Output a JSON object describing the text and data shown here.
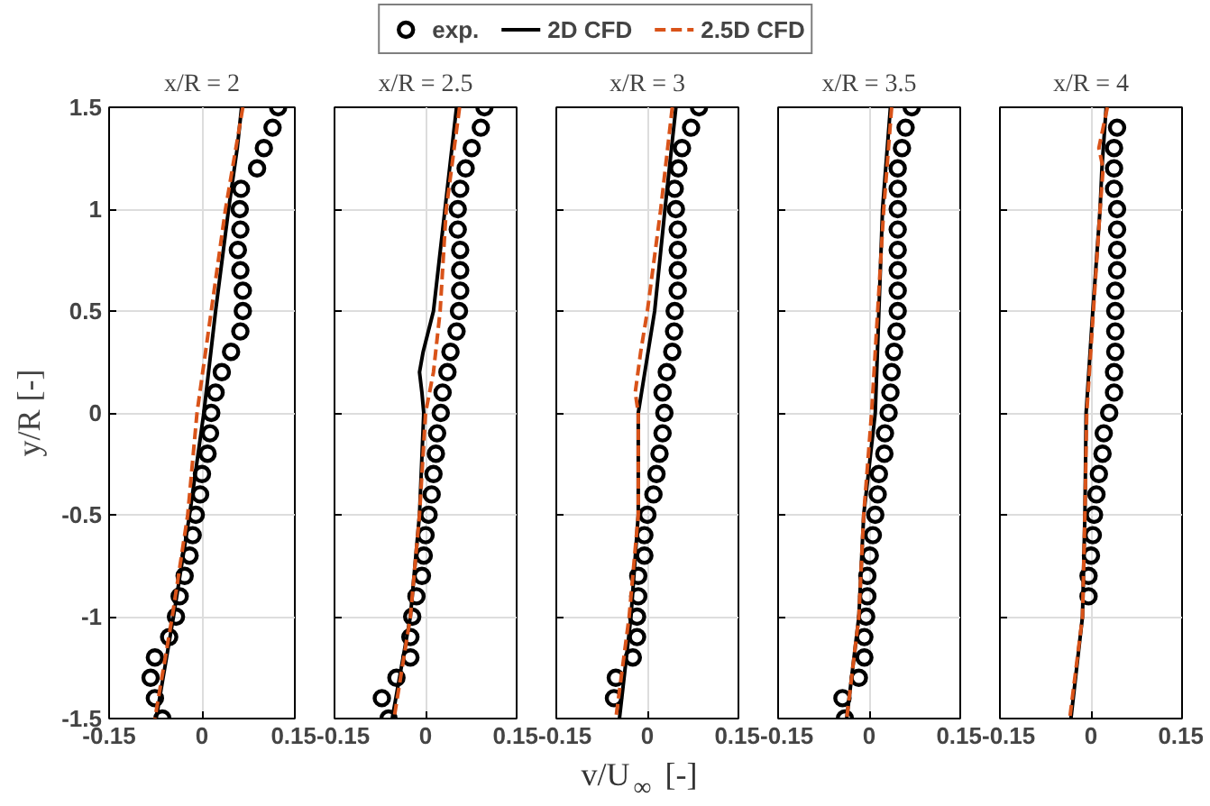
{
  "chart_data": [
    {
      "type": "scatter",
      "title": "x/R = 2",
      "ylabel": "y/R [-]",
      "xlim": [
        -0.15,
        0.15
      ],
      "xticks": [
        -0.15,
        0,
        0.15
      ],
      "ylim": [
        -1.5,
        1.5
      ],
      "yticks": [
        -1.5,
        -1,
        -0.5,
        0,
        0.5,
        1,
        1.5
      ],
      "grid": true,
      "legend": "top",
      "series": [
        {
          "name": "exp.",
          "color": "#000000",
          "marker": "circle",
          "x": [
            0.123,
            0.114,
            0.1,
            0.089,
            0.063,
            0.061,
            0.062,
            0.058,
            0.062,
            0.066,
            0.066,
            0.062,
            0.047,
            0.032,
            0.022,
            0.015,
            0.013,
            0.009,
            0,
            -0.003,
            -0.01,
            -0.015,
            -0.02,
            -0.028,
            -0.036,
            -0.042,
            -0.053,
            -0.076,
            -0.083,
            -0.076,
            -0.064
          ],
          "values": [
            1.5,
            1.4,
            1.3,
            1.2,
            1.1,
            1.0,
            0.9,
            0.8,
            0.7,
            0.6,
            0.5,
            0.4,
            0.3,
            0.2,
            0.1,
            0,
            -0.1,
            -0.2,
            -0.3,
            -0.4,
            -0.5,
            -0.6,
            -0.7,
            -0.8,
            -0.9,
            -1.0,
            -1.1,
            -1.2,
            -1.3,
            -1.4,
            -1.5
          ]
        },
        {
          "name": "2D CFD",
          "type": "line",
          "color": "#000000",
          "line_style": "solid",
          "x": [
            0.064,
            0.057,
            0.043,
            0.022,
            0.003,
            -0.02,
            -0.046,
            -0.074
          ],
          "values": [
            1.5,
            1.3,
            1.0,
            0.5,
            0,
            -0.5,
            -1.0,
            -1.5
          ]
        },
        {
          "name": "2.5D CFD",
          "type": "line",
          "color": "#d95319",
          "line_style": "dashed",
          "x": [
            0.066,
            0.038,
            0.015,
            -0.008,
            -0.023,
            -0.048,
            -0.076
          ],
          "values": [
            1.5,
            1.0,
            0.5,
            0,
            -0.5,
            -1.0,
            -1.5
          ]
        }
      ]
    },
    {
      "type": "scatter",
      "title": "x/R = 2.5",
      "xlim": [
        -0.15,
        0.15
      ],
      "xticks": [
        -0.15,
        0,
        0.15
      ],
      "ylim": [
        -1.5,
        1.5
      ],
      "yticks": [
        -1.5,
        -1,
        -0.5,
        0,
        0.5,
        1,
        1.5
      ],
      "tick_labels": "x",
      "grid": true,
      "series": [
        {
          "color": "#000000",
          "marker": "circle",
          "x": [
            0.097,
            0.091,
            0.076,
            0.066,
            0.057,
            0.053,
            0.053,
            0.057,
            0.057,
            0.057,
            0.055,
            0.051,
            0.041,
            0.036,
            0.028,
            0.025,
            0.019,
            0.017,
            0.013,
            0.01,
            0.005,
            0,
            -0.003,
            -0.006,
            -0.015,
            -0.022,
            -0.025,
            -0.025,
            -0.048,
            -0.072,
            -0.061
          ],
          "values": [
            1.5,
            1.4,
            1.3,
            1.2,
            1.1,
            1.0,
            0.9,
            0.8,
            0.7,
            0.6,
            0.5,
            0.4,
            0.3,
            0.2,
            0.1,
            0,
            -0.1,
            -0.2,
            -0.3,
            -0.4,
            -0.5,
            -0.6,
            -0.7,
            -0.8,
            -0.9,
            -1.0,
            -1.1,
            -1.2,
            -1.3,
            -1.4,
            -1.5
          ]
        },
        {
          "type": "line",
          "color": "#000000",
          "line_style": "solid",
          "x": [
            0.051,
            0.032,
            0.013,
            -0.004,
            -0.01,
            -0.006,
            -0.003,
            -0.01,
            -0.025,
            -0.055
          ],
          "values": [
            1.5,
            1.0,
            0.5,
            0.3,
            0.2,
            0.1,
            0,
            -0.5,
            -1.0,
            -1.5
          ]
        },
        {
          "type": "line",
          "color": "#d95319",
          "line_style": "dashed",
          "x": [
            0.056,
            0.034,
            0.024,
            0.013,
            0,
            -0.01,
            -0.025,
            -0.052
          ],
          "values": [
            1.5,
            1.0,
            0.5,
            0.2,
            0,
            -0.5,
            -1.0,
            -1.5
          ]
        }
      ]
    },
    {
      "type": "scatter",
      "title": "x/R = 3",
      "xlabel": "v/U$_{∞}$ [-]",
      "xlim": [
        -0.15,
        0.15
      ],
      "xticks": [
        -0.15,
        0,
        0.15
      ],
      "ylim": [
        -1.5,
        1.5
      ],
      "yticks": [
        -1.5,
        -1,
        -0.5,
        0,
        0.5,
        1,
        1.5
      ],
      "tick_labels": "x",
      "grid": true,
      "series": [
        {
          "color": "#000000",
          "marker": "circle",
          "x": [
            0.085,
            0.072,
            0.057,
            0.051,
            0.045,
            0.047,
            0.05,
            0.05,
            0.05,
            0.05,
            0.045,
            0.044,
            0.041,
            0.032,
            0.025,
            0.028,
            0.025,
            0.02,
            0.015,
            0.01,
            0.0,
            -0.005,
            -0.005,
            -0.015,
            -0.015,
            -0.017,
            -0.017,
            -0.024,
            -0.052,
            -0.055
          ],
          "values": [
            1.5,
            1.4,
            1.3,
            1.2,
            1.1,
            1.0,
            0.9,
            0.8,
            0.7,
            0.6,
            0.5,
            0.4,
            0.3,
            0.2,
            0.1,
            0,
            -0.1,
            -0.2,
            -0.3,
            -0.4,
            -0.5,
            -0.6,
            -0.7,
            -0.8,
            -0.9,
            -1.0,
            -1.1,
            -1.2,
            -1.3,
            -1.4
          ]
        },
        {
          "type": "line",
          "color": "#000000",
          "line_style": "solid",
          "x": [
            0.047,
            0.029,
            0.012,
            -0.015,
            -0.015,
            -0.027,
            -0.046
          ],
          "values": [
            1.5,
            1.0,
            0.5,
            0,
            -0.5,
            -1.0,
            -1.5
          ]
        },
        {
          "type": "line",
          "color": "#d95319",
          "line_style": "dashed",
          "x": [
            0.041,
            0.022,
            0,
            -0.011,
            -0.02,
            -0.015,
            -0.015,
            -0.03,
            -0.052
          ],
          "values": [
            1.5,
            1.0,
            0.5,
            0.3,
            0.1,
            0,
            -0.5,
            -1.0,
            -1.5
          ]
        }
      ]
    },
    {
      "type": "scatter",
      "title": "x/R = 3.5",
      "xlim": [
        -0.15,
        0.15
      ],
      "xticks": [
        -0.15,
        0,
        0.15
      ],
      "ylim": [
        -1.5,
        1.5
      ],
      "yticks": [
        -1.5,
        -1,
        -0.5,
        0,
        0.5,
        1,
        1.5
      ],
      "tick_labels": "x",
      "grid": true,
      "series": [
        {
          "color": "#000000",
          "marker": "circle",
          "x": [
            0.07,
            0.06,
            0.054,
            0.047,
            0.047,
            0.047,
            0.047,
            0.047,
            0.047,
            0.047,
            0.047,
            0.045,
            0.041,
            0.037,
            0.035,
            0.032,
            0.026,
            0.025,
            0.016,
            0.014,
            0.01,
            0.006,
            0.001,
            -0.003,
            -0.003,
            -0.005,
            -0.008,
            -0.008,
            -0.017,
            -0.044,
            -0.04
          ],
          "values": [
            1.5,
            1.4,
            1.3,
            1.2,
            1.1,
            1.0,
            0.9,
            0.8,
            0.7,
            0.6,
            0.5,
            0.4,
            0.3,
            0.2,
            0.1,
            0,
            -0.1,
            -0.2,
            -0.3,
            -0.4,
            -0.5,
            -0.6,
            -0.7,
            -0.8,
            -0.9,
            -1.0,
            -1.1,
            -1.2,
            -1.3,
            -1.4,
            -1.5
          ]
        },
        {
          "type": "line",
          "color": "#000000",
          "line_style": "solid",
          "x": [
            0.035,
            0.022,
            0.016,
            0.01,
            -0.009,
            -0.017,
            -0.037
          ],
          "values": [
            1.5,
            1.0,
            0.5,
            0,
            -0.5,
            -1.0,
            -1.5
          ]
        },
        {
          "type": "line",
          "color": "#d95319",
          "line_style": "dashed",
          "x": [
            0.037,
            0.024,
            0.014,
            0.004,
            -0.009,
            -0.017,
            -0.037
          ],
          "values": [
            1.5,
            1.0,
            0.5,
            0,
            -0.5,
            -1.0,
            -1.5
          ]
        }
      ]
    },
    {
      "type": "scatter",
      "title": "x/R = 4",
      "xlim": [
        -0.15,
        0.15
      ],
      "xticks": [
        -0.15,
        0,
        0.15
      ],
      "ylim": [
        -1.5,
        1.5
      ],
      "yticks": [
        -1.5,
        -1,
        -0.5,
        0,
        0.5,
        1,
        1.5
      ],
      "tick_labels": "x",
      "grid": true,
      "series": [
        {
          "color": "#000000",
          "marker": "circle",
          "x": [
            0.043,
            0.038,
            0.038,
            0.038,
            0.043,
            0.043,
            0.043,
            0.043,
            0.04,
            0.04,
            0.04,
            0.04,
            0.038,
            0.038,
            0.03,
            0.021,
            0.019,
            0.013,
            0.009,
            0.005,
            0.003,
            0,
            -0.004,
            -0.004
          ],
          "values": [
            1.4,
            1.3,
            1.2,
            1.1,
            1.0,
            0.9,
            0.8,
            0.7,
            0.6,
            0.5,
            0.4,
            0.3,
            0.2,
            0.1,
            0,
            -0.1,
            -0.2,
            -0.3,
            -0.4,
            -0.5,
            -0.6,
            -0.7,
            -0.8,
            -0.9
          ]
        },
        {
          "type": "line",
          "color": "#000000",
          "line_style": "solid",
          "x": [
            0.025,
            0.018,
            0.015,
            0.003,
            -0.008,
            -0.01,
            -0.014,
            -0.033
          ],
          "values": [
            1.5,
            1.2,
            1.0,
            0.5,
            0,
            -0.5,
            -1.0,
            -1.5
          ]
        },
        {
          "type": "line",
          "color": "#d95319",
          "line_style": "dashed",
          "x": [
            0.027,
            0.013,
            0.02,
            0.015,
            0.004,
            -0.007,
            -0.01,
            -0.014,
            -0.035
          ],
          "values": [
            1.5,
            1.3,
            1.2,
            1.0,
            0.5,
            0,
            -0.5,
            -1.0,
            -1.5
          ]
        }
      ]
    }
  ]
}
